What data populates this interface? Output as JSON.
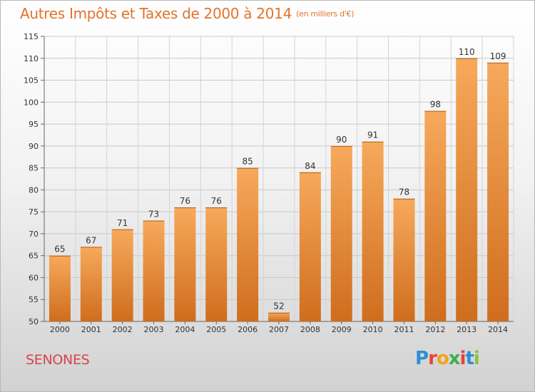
{
  "header": {
    "title": "Autres Impôts et Taxes de 2000 à 2014",
    "unit": "(en milliers d'€)"
  },
  "footer": {
    "commune": "SENONES",
    "logo_letters": [
      "P",
      "r",
      "o",
      "x",
      "i",
      "t",
      "i"
    ]
  },
  "colors": {
    "title": "#e2722c",
    "commune": "#d6464a",
    "bar_light": "#f7a95c",
    "bar_dark": "#cf6d1d",
    "logo": [
      "#2b8fd6",
      "#e8433a",
      "#f4a21c",
      "#3bb14a",
      "#e8433a",
      "#2b8fd6",
      "#8ac43f"
    ]
  },
  "chart_data": {
    "type": "bar",
    "title": "Autres Impôts et Taxes de 2000 à 2014",
    "subtitle": "(en milliers d'€)",
    "categories": [
      "2000",
      "2001",
      "2002",
      "2003",
      "2004",
      "2005",
      "2006",
      "2007",
      "2008",
      "2009",
      "2010",
      "2011",
      "2012",
      "2013",
      "2014"
    ],
    "values": [
      65,
      67,
      71,
      73,
      76,
      76,
      85,
      52,
      84,
      90,
      91,
      78,
      98,
      110,
      109
    ],
    "ylim": [
      50,
      115
    ],
    "yticks": [
      50,
      55,
      60,
      65,
      70,
      75,
      80,
      85,
      90,
      95,
      100,
      105,
      110,
      115
    ],
    "grid": true,
    "xlabel": "",
    "ylabel": ""
  }
}
